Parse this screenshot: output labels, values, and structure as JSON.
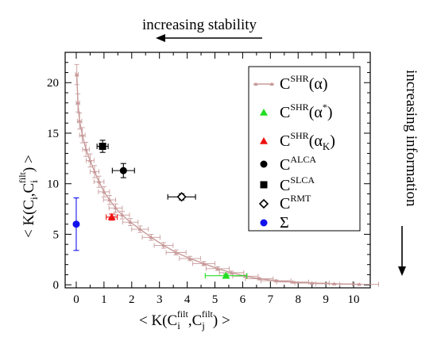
{
  "chart_data": {
    "type": "scatter",
    "title": "",
    "xlabel": {
      "main": "< K(C",
      "sub1": "i",
      "sup1": "filt",
      "mid": ",C",
      "sub2": "j",
      "sup2": "filt",
      "end": ") >"
    },
    "ylabel": {
      "main": "< K(C",
      "sub1": "i",
      "mid": ",C",
      "sub2": "i",
      "sup2": "filt",
      "end": ") >"
    },
    "xlim": [
      -0.4,
      10.6
    ],
    "ylim": [
      -0.3,
      23.0
    ],
    "xticks": [
      "0",
      "1",
      "2",
      "3",
      "4",
      "5",
      "6",
      "7",
      "8",
      "9",
      "10"
    ],
    "yticks": [
      "0",
      "5",
      "10",
      "15",
      "20"
    ],
    "annotations": {
      "top_arrow_label": "increasing stability",
      "right_arrow_label": "increasing information"
    },
    "colors": {
      "curve": "#c89a9a",
      "green": "#22dd22",
      "red": "#ee1111",
      "blue": "#1111ee",
      "black": "#000000"
    },
    "legend": {
      "position": "top-right",
      "entries": [
        {
          "base": "C",
          "sup": "SHR",
          "tail": "(α)",
          "marker": "curve"
        },
        {
          "base": "C",
          "sup": "SHR",
          "tail": "(α",
          "tail_sup": "*",
          "tail_end": ")",
          "marker": "green-triangle"
        },
        {
          "base": "C",
          "sup": "SHR",
          "tail": "(α",
          "tail_sub": "K",
          "tail_end": ")",
          "marker": "red-triangle"
        },
        {
          "base": "C",
          "sup": "ALCA",
          "marker": "black-circle"
        },
        {
          "base": "C",
          "sup": "SLCA",
          "marker": "black-square"
        },
        {
          "base": "C",
          "sup": "RMT",
          "marker": "open-diamond"
        },
        {
          "base": "Σ",
          "marker": "blue-circle"
        }
      ]
    },
    "series": [
      {
        "name": "C^SHR(α)",
        "style": "curve",
        "x": [
          0.02,
          0.06,
          0.12,
          0.22,
          0.35,
          0.5,
          0.66,
          0.82,
          1.0,
          1.2,
          1.42,
          1.66,
          1.95,
          2.3,
          2.7,
          3.15,
          3.6,
          4.1,
          4.6,
          5.1,
          5.6,
          6.1,
          6.6,
          7.2,
          7.8,
          8.5,
          9.3,
          10.2
        ],
        "y": [
          20.8,
          18.0,
          16.2,
          14.8,
          13.4,
          12.3,
          11.2,
          10.2,
          9.2,
          8.4,
          7.6,
          6.9,
          6.2,
          5.5,
          4.7,
          3.9,
          3.2,
          2.6,
          2.1,
          1.6,
          1.2,
          0.85,
          0.6,
          0.4,
          0.27,
          0.17,
          0.1,
          0.05
        ],
        "xerr": [
          0.05,
          0.06,
          0.08,
          0.1,
          0.12,
          0.14,
          0.16,
          0.18,
          0.2,
          0.22,
          0.24,
          0.26,
          0.28,
          0.3,
          0.32,
          0.34,
          0.36,
          0.38,
          0.4,
          0.42,
          0.44,
          0.46,
          0.5,
          0.54,
          0.58,
          0.62,
          0.66,
          0.7
        ],
        "yerr": [
          1.0,
          0.9,
          0.8,
          0.75,
          0.7,
          0.65,
          0.6,
          0.55,
          0.5,
          0.45,
          0.4,
          0.38,
          0.35,
          0.32,
          0.3,
          0.28,
          0.25,
          0.22,
          0.2,
          0.18,
          0.15,
          0.12,
          0.1,
          0.08,
          0.06,
          0.05,
          0.04,
          0.03
        ]
      },
      {
        "name": "C^SHR(α*)",
        "style": "green-triangle",
        "x": [
          5.4
        ],
        "y": [
          0.9
        ],
        "xerr": [
          0.75
        ],
        "yerr": [
          0.15
        ]
      },
      {
        "name": "C^SHR(α_K)",
        "style": "red-triangle",
        "x": [
          1.28
        ],
        "y": [
          6.7
        ],
        "xerr": [
          0.2
        ],
        "yerr": [
          0.3
        ]
      },
      {
        "name": "C^ALCA",
        "style": "black-circle",
        "x": [
          1.7
        ],
        "y": [
          11.3
        ],
        "xerr": [
          0.4
        ],
        "yerr": [
          0.7
        ]
      },
      {
        "name": "C^SLCA",
        "style": "black-square",
        "x": [
          0.95
        ],
        "y": [
          13.7
        ],
        "xerr": [
          0.2
        ],
        "yerr": [
          0.6
        ]
      },
      {
        "name": "C^RMT",
        "style": "open-diamond",
        "x": [
          3.8
        ],
        "y": [
          8.7
        ],
        "xerr": [
          0.5
        ],
        "yerr": [
          0.3
        ]
      },
      {
        "name": "Σ",
        "style": "blue-circle",
        "x": [
          0.0
        ],
        "y": [
          6.0
        ],
        "xerr": [
          0.0
        ],
        "yerr": [
          2.6
        ]
      }
    ]
  }
}
